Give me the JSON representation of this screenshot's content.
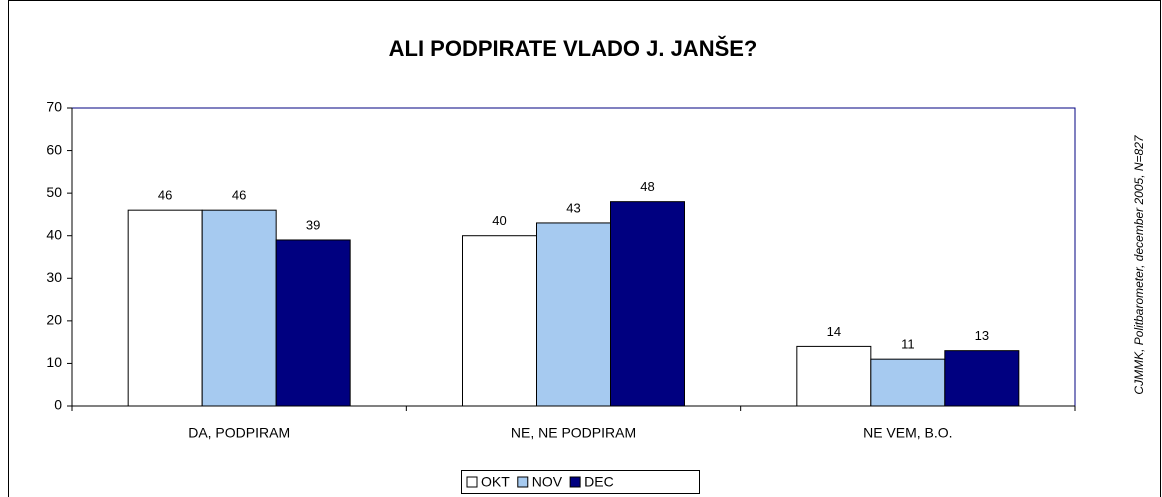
{
  "chart_data": {
    "type": "bar",
    "title": "ALI PODPIRATE VLADO J. JANŠE?",
    "annotation": "CJMMK, Politbarometer, december 2005, N=827",
    "categories": [
      "DA, PODPIRAM",
      "NE, NE PODPIRAM",
      "NE VEM, B.O."
    ],
    "series": [
      {
        "name": "OKT",
        "color": "#ffffff",
        "values": [
          46,
          40,
          14
        ]
      },
      {
        "name": "NOV",
        "color": "#a6caf0",
        "values": [
          46,
          43,
          11
        ]
      },
      {
        "name": "DEC",
        "color": "#000080",
        "values": [
          39,
          48,
          13
        ]
      }
    ],
    "ylim": [
      0,
      70
    ],
    "yticks": [
      0,
      10,
      20,
      30,
      40,
      50,
      60,
      70
    ],
    "grid": false,
    "legend": "bottom"
  }
}
